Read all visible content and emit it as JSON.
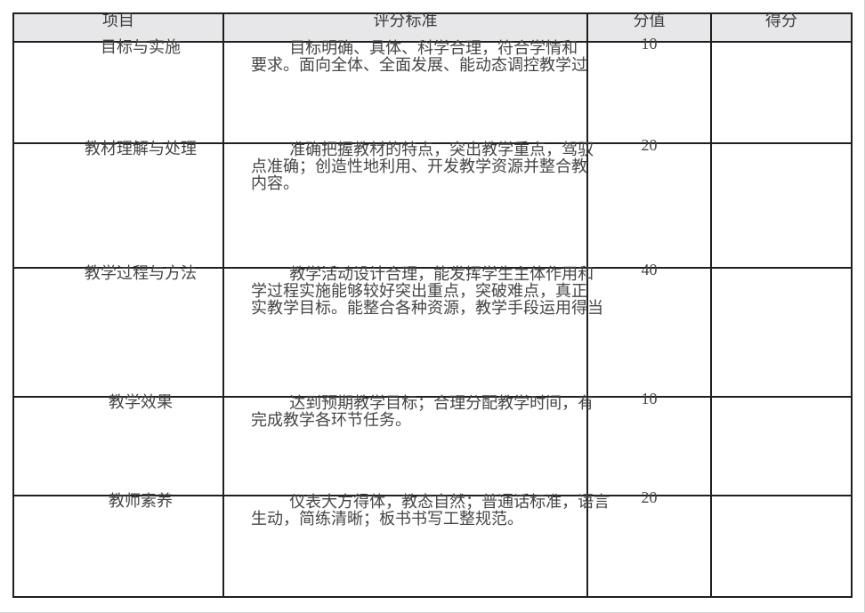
{
  "page": {
    "background": "#ffffff",
    "border_color": "#1f1f1f",
    "header_bg": "#e7e7e9",
    "text_color": "#454545"
  },
  "table": {
    "headers": {
      "item": "项目",
      "criteria": "评分标准",
      "score": "分值",
      "earned": "得分"
    },
    "rows": [
      {
        "item": "目标与实施",
        "score": "10",
        "lines": [
          "目标明确、具体、科学合理，符合学情和",
          "要求。面向全体、全面发展、能动态调控教学过"
        ]
      },
      {
        "item": "教材理解与处理",
        "score": "20",
        "lines": [
          "准确把握教材的特点，突出教学重点，驾驭",
          "点准确；创造性地利用、开发教学资源并整合教",
          "内容。"
        ]
      },
      {
        "item": "教学过程与方法",
        "score": "40",
        "lines": [
          "教学活动设计合理，能发挥学生主体作用和",
          "学过程实施能够较好突出重点，突破难点，真正",
          "实教学目标。能整合各种资源，教学手段运用得当"
        ]
      },
      {
        "item": "教学效果",
        "score": "10",
        "lines": [
          "达到预期教学目标；合理分配教学时间，有",
          "完成教学各环节任务。"
        ]
      },
      {
        "item": "教师素养",
        "score": "20",
        "lines": [
          "仪表大方得体，教态自然；普通话标准，语言",
          "生动，简练清晰；板书书写工整规范。"
        ]
      }
    ]
  }
}
